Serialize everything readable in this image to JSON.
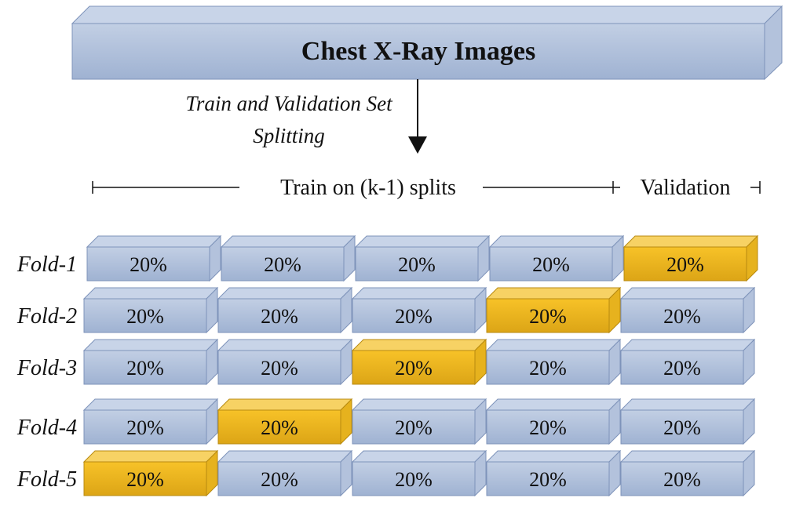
{
  "title": "Chest X-Ray Images",
  "split_note": {
    "line1": "Train and Validation Set",
    "line2": "Splitting"
  },
  "range": {
    "train_label": "Train on (k-1) splits",
    "validation_label": "Validation"
  },
  "colors": {
    "block_top": "#c8d4e8",
    "block_front_light": "#c2cfe4",
    "block_front_dark": "#9fb2d2",
    "block_side": "#b3c2dc",
    "block_edge": "#7e93ba",
    "validation_top": "#f7d264",
    "validation_front_light": "#f7c228",
    "validation_front_dark": "#dca516",
    "validation_side": "#e6b21e",
    "validation_edge": "#b88a10"
  },
  "folds": [
    {
      "label": "Fold-1",
      "cells": [
        "20%",
        "20%",
        "20%",
        "20%",
        "20%"
      ],
      "validation_index": 4
    },
    {
      "label": "Fold-2",
      "cells": [
        "20%",
        "20%",
        "20%",
        "20%",
        "20%"
      ],
      "validation_index": 3
    },
    {
      "label": "Fold-3",
      "cells": [
        "20%",
        "20%",
        "20%",
        "20%",
        "20%"
      ],
      "validation_index": 2
    },
    {
      "label": "Fold-4",
      "cells": [
        "20%",
        "20%",
        "20%",
        "20%",
        "20%"
      ],
      "validation_index": 1
    },
    {
      "label": "Fold-5",
      "cells": [
        "20%",
        "20%",
        "20%",
        "20%",
        "20%"
      ],
      "validation_index": 0
    }
  ]
}
